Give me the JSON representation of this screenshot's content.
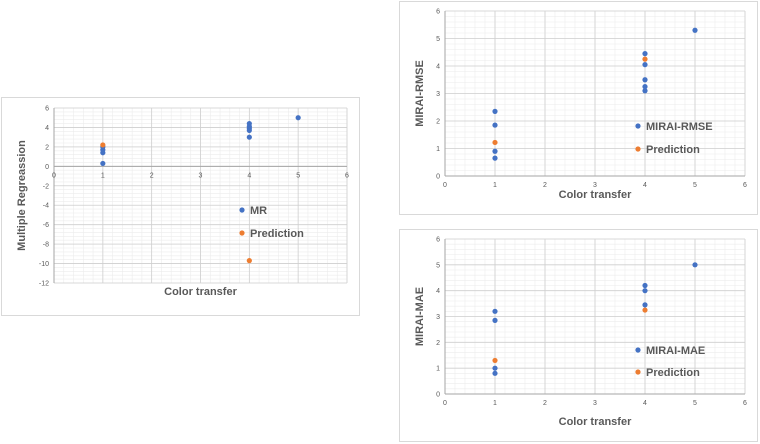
{
  "chart_data": [
    {
      "type": "scatter",
      "xlabel": "Color transfer",
      "ylabel": "Multiple Regreassion",
      "xlim": [
        0,
        6
      ],
      "ylim": [
        -12,
        6
      ],
      "x_ticks": [
        0,
        1,
        2,
        3,
        4,
        5,
        6
      ],
      "y_ticks": [
        -12,
        -10,
        -8,
        -6,
        -4,
        -2,
        0,
        2,
        4,
        6
      ],
      "grid": true,
      "minor_grid": true,
      "legend_position": "center-right inside plot",
      "series": [
        {
          "name": "MR",
          "color": "#4472c4",
          "points": [
            [
              1,
              0.3
            ],
            [
              1,
              1.4
            ],
            [
              1,
              1.7
            ],
            [
              1,
              2.0
            ],
            [
              4,
              3.0
            ],
            [
              4,
              3.7
            ],
            [
              4,
              3.9
            ],
            [
              4,
              4.1
            ],
            [
              4,
              4.4
            ],
            [
              5,
              5.0
            ]
          ]
        },
        {
          "name": "Prediction",
          "color": "#ed7d31",
          "points": [
            [
              1,
              2.2
            ],
            [
              4,
              -9.7
            ]
          ]
        }
      ]
    },
    {
      "type": "scatter",
      "xlabel": "Color transfer",
      "ylabel": "MIRAI-RMSE",
      "xlim": [
        0,
        6
      ],
      "ylim": [
        0,
        6
      ],
      "x_ticks": [
        0,
        1,
        2,
        3,
        4,
        5,
        6
      ],
      "y_ticks": [
        0,
        1,
        2,
        3,
        4,
        5,
        6
      ],
      "grid": true,
      "minor_grid": true,
      "legend_position": "center-right inside plot",
      "series": [
        {
          "name": "MIRAI-RMSE",
          "color": "#4472c4",
          "points": [
            [
              1,
              0.65
            ],
            [
              1,
              0.9
            ],
            [
              1,
              1.85
            ],
            [
              1,
              2.35
            ],
            [
              4,
              3.1
            ],
            [
              4,
              3.25
            ],
            [
              4,
              3.5
            ],
            [
              4,
              4.05
            ],
            [
              4,
              4.45
            ],
            [
              5,
              5.3
            ]
          ]
        },
        {
          "name": "Prediction",
          "color": "#ed7d31",
          "points": [
            [
              1,
              1.22
            ],
            [
              4,
              4.25
            ]
          ]
        }
      ]
    },
    {
      "type": "scatter",
      "xlabel": "Color transfer",
      "ylabel": "MIRAI-MAE",
      "xlim": [
        0,
        6
      ],
      "ylim": [
        0,
        6
      ],
      "x_ticks": [
        0,
        1,
        2,
        3,
        4,
        5,
        6
      ],
      "y_ticks": [
        0,
        1,
        2,
        3,
        4,
        5,
        6
      ],
      "grid": true,
      "minor_grid": true,
      "legend_position": "center-right inside plot",
      "series": [
        {
          "name": "MIRAI-MAE",
          "color": "#4472c4",
          "points": [
            [
              1,
              0.8
            ],
            [
              1,
              1.0
            ],
            [
              1,
              2.85
            ],
            [
              1,
              3.2
            ],
            [
              4,
              3.45
            ],
            [
              4,
              4.0
            ],
            [
              4,
              4.2
            ],
            [
              5,
              5.0
            ]
          ]
        },
        {
          "name": "Prediction",
          "color": "#ed7d31",
          "points": [
            [
              1,
              1.3
            ],
            [
              4,
              3.25
            ]
          ]
        }
      ]
    }
  ]
}
